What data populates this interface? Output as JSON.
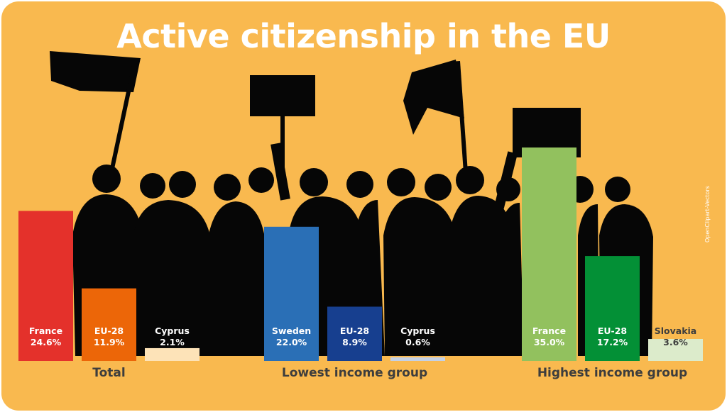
{
  "title": "Active citizenship in the EU",
  "credit": "OpenClipart-Vectors",
  "chart_data": {
    "type": "bar",
    "title": "Active citizenship in the EU",
    "groups": [
      {
        "name": "Total",
        "bars": [
          {
            "label": "France",
            "value": 24.6,
            "display": "24.6%",
            "color": "#e4312b"
          },
          {
            "label": "EU-28",
            "value": 11.9,
            "display": "11.9%",
            "color": "#ec6608"
          },
          {
            "label": "Cyprus",
            "value": 2.1,
            "display": "2.1%",
            "color": "#fde3b8"
          }
        ]
      },
      {
        "name": "Lowest income group",
        "bars": [
          {
            "label": "Sweden",
            "value": 22.0,
            "display": "22.0%",
            "color": "#2a6fb6"
          },
          {
            "label": "EU-28",
            "value": 8.9,
            "display": "8.9%",
            "color": "#173f8f"
          },
          {
            "label": "Cyprus",
            "value": 0.6,
            "display": "0.6%",
            "color": "#c4d1e6"
          }
        ]
      },
      {
        "name": "Highest income group",
        "bars": [
          {
            "label": "France",
            "value": 35.0,
            "display": "35.0%",
            "color": "#92c15e"
          },
          {
            "label": "EU-28",
            "value": 17.2,
            "display": "17.2%",
            "color": "#039036"
          },
          {
            "label": "Slovakia",
            "value": 3.6,
            "display": "3.6%",
            "color": "#dcebcb"
          }
        ]
      }
    ]
  }
}
